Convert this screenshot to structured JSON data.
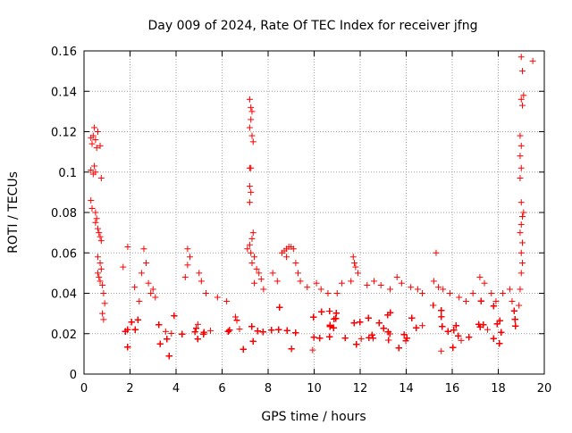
{
  "chart_data": {
    "type": "scatter",
    "title": "Day 009 of 2024, Rate Of TEC Index for receiver jfng",
    "xlabel": "GPS time / hours",
    "ylabel": "ROTI / TECUs",
    "xlim": [
      0,
      20
    ],
    "ylim": [
      0,
      0.16
    ],
    "x_ticks": [
      0,
      2,
      4,
      6,
      8,
      10,
      12,
      14,
      16,
      18,
      20
    ],
    "y_ticks": [
      0,
      0.02,
      0.04,
      0.06,
      0.08,
      0.1,
      0.12,
      0.14,
      0.16
    ],
    "x_tick_labels": [
      "0",
      "2",
      "4",
      "6",
      "8",
      "10",
      "12",
      "14",
      "16",
      "18",
      "20"
    ],
    "y_tick_labels": [
      "0",
      "0.02",
      "0.04",
      "0.06",
      "0.08",
      "0.1",
      "0.12",
      "0.14",
      "0.16"
    ],
    "grid": true,
    "marker": "+",
    "color": "#ff0000",
    "series": [
      {
        "name": "ROTI",
        "points": [
          [
            0.3,
            0.117
          ],
          [
            0.35,
            0.114
          ],
          [
            0.4,
            0.118
          ],
          [
            0.45,
            0.122
          ],
          [
            0.5,
            0.116
          ],
          [
            0.55,
            0.112
          ],
          [
            0.6,
            0.12
          ],
          [
            0.7,
            0.113
          ],
          [
            0.3,
            0.101
          ],
          [
            0.4,
            0.099
          ],
          [
            0.45,
            0.103
          ],
          [
            0.5,
            0.1
          ],
          [
            0.75,
            0.097
          ],
          [
            0.3,
            0.086
          ],
          [
            0.35,
            0.082
          ],
          [
            0.5,
            0.08
          ],
          [
            0.55,
            0.077
          ],
          [
            0.5,
            0.075
          ],
          [
            0.6,
            0.072
          ],
          [
            0.65,
            0.07
          ],
          [
            0.7,
            0.068
          ],
          [
            0.75,
            0.066
          ],
          [
            0.6,
            0.058
          ],
          [
            0.7,
            0.055
          ],
          [
            0.75,
            0.052
          ],
          [
            0.6,
            0.05
          ],
          [
            0.65,
            0.048
          ],
          [
            0.7,
            0.046
          ],
          [
            0.8,
            0.044
          ],
          [
            0.85,
            0.04
          ],
          [
            0.9,
            0.035
          ],
          [
            0.8,
            0.03
          ],
          [
            0.85,
            0.027
          ],
          [
            1.9,
            0.063
          ],
          [
            1.7,
            0.053
          ],
          [
            2.6,
            0.062
          ],
          [
            2.7,
            0.055
          ],
          [
            2.5,
            0.05
          ],
          [
            2.8,
            0.045
          ],
          [
            2.9,
            0.04
          ],
          [
            3.0,
            0.042
          ],
          [
            3.1,
            0.038
          ],
          [
            2.2,
            0.043
          ],
          [
            2.4,
            0.036
          ],
          [
            4.5,
            0.062
          ],
          [
            4.6,
            0.058
          ],
          [
            4.5,
            0.054
          ],
          [
            4.4,
            0.048
          ],
          [
            5.0,
            0.05
          ],
          [
            5.1,
            0.046
          ],
          [
            5.3,
            0.04
          ],
          [
            5.8,
            0.038
          ],
          [
            6.2,
            0.036
          ],
          [
            7.2,
            0.136
          ],
          [
            7.25,
            0.132
          ],
          [
            7.3,
            0.13
          ],
          [
            7.25,
            0.126
          ],
          [
            7.2,
            0.122
          ],
          [
            7.3,
            0.118
          ],
          [
            7.35,
            0.115
          ],
          [
            7.2,
            0.102
          ],
          [
            7.25,
            0.102
          ],
          [
            7.2,
            0.093
          ],
          [
            7.25,
            0.09
          ],
          [
            7.2,
            0.085
          ],
          [
            7.35,
            0.07
          ],
          [
            7.3,
            0.067
          ],
          [
            7.2,
            0.064
          ],
          [
            7.1,
            0.062
          ],
          [
            7.25,
            0.06
          ],
          [
            7.4,
            0.058
          ],
          [
            7.3,
            0.055
          ],
          [
            7.5,
            0.052
          ],
          [
            7.6,
            0.05
          ],
          [
            7.7,
            0.047
          ],
          [
            7.4,
            0.045
          ],
          [
            8.6,
            0.06
          ],
          [
            8.7,
            0.061
          ],
          [
            8.8,
            0.062
          ],
          [
            8.9,
            0.063
          ],
          [
            9.0,
            0.063
          ],
          [
            9.1,
            0.062
          ],
          [
            8.8,
            0.058
          ],
          [
            9.2,
            0.055
          ],
          [
            9.3,
            0.05
          ],
          [
            9.4,
            0.046
          ],
          [
            8.2,
            0.05
          ],
          [
            8.4,
            0.046
          ],
          [
            7.8,
            0.042
          ],
          [
            9.7,
            0.043
          ],
          [
            10.1,
            0.045
          ],
          [
            10.3,
            0.042
          ],
          [
            10.6,
            0.04
          ],
          [
            11.7,
            0.058
          ],
          [
            11.75,
            0.055
          ],
          [
            11.8,
            0.053
          ],
          [
            11.9,
            0.05
          ],
          [
            11.6,
            0.046
          ],
          [
            11.2,
            0.045
          ],
          [
            11.0,
            0.04
          ],
          [
            12.3,
            0.044
          ],
          [
            12.6,
            0.046
          ],
          [
            12.9,
            0.044
          ],
          [
            13.3,
            0.042
          ],
          [
            13.6,
            0.048
          ],
          [
            13.8,
            0.045
          ],
          [
            14.2,
            0.043
          ],
          [
            14.5,
            0.042
          ],
          [
            14.7,
            0.04
          ],
          [
            15.3,
            0.06
          ],
          [
            15.2,
            0.046
          ],
          [
            15.4,
            0.043
          ],
          [
            15.6,
            0.042
          ],
          [
            15.9,
            0.04
          ],
          [
            16.3,
            0.038
          ],
          [
            16.6,
            0.036
          ],
          [
            16.9,
            0.04
          ],
          [
            17.2,
            0.048
          ],
          [
            17.4,
            0.045
          ],
          [
            17.7,
            0.04
          ],
          [
            17.9,
            0.036
          ],
          [
            18.2,
            0.04
          ],
          [
            18.5,
            0.042
          ],
          [
            18.6,
            0.036
          ],
          [
            18.9,
            0.034
          ],
          [
            18.95,
            0.042
          ],
          [
            19.0,
            0.05
          ],
          [
            19.05,
            0.055
          ],
          [
            19.0,
            0.06
          ],
          [
            19.05,
            0.065
          ],
          [
            18.95,
            0.07
          ],
          [
            19.0,
            0.074
          ],
          [
            19.05,
            0.078
          ],
          [
            19.1,
            0.08
          ],
          [
            19.0,
            0.085
          ],
          [
            18.95,
            0.097
          ],
          [
            19.0,
            0.102
          ],
          [
            18.95,
            0.108
          ],
          [
            19.0,
            0.113
          ],
          [
            18.95,
            0.118
          ],
          [
            19.05,
            0.133
          ],
          [
            19.0,
            0.136
          ],
          [
            19.1,
            0.138
          ],
          [
            19.05,
            0.15
          ],
          [
            19.0,
            0.157
          ],
          [
            19.5,
            0.155
          ]
        ]
      }
    ],
    "bulk_band": {
      "description": "dense cloud of points between x=0.8 and x=18.8",
      "x_range": [
        0.8,
        18.8
      ],
      "y_range": [
        0.005,
        0.035
      ],
      "typical_center": 0.017
    }
  }
}
